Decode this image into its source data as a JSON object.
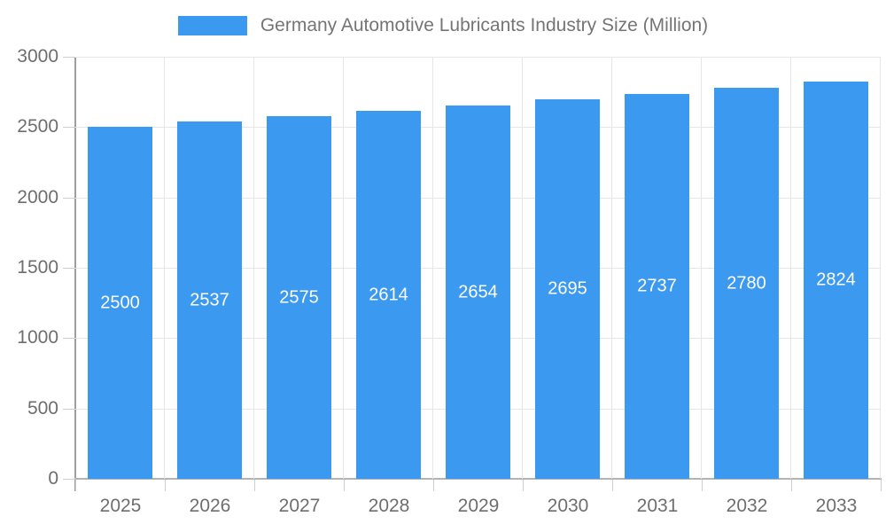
{
  "legend": {
    "label": "Germany Automotive Lubricants Industry Size (Million)"
  },
  "chart_data": {
    "type": "bar",
    "title": "Germany Automotive Lubricants Industry Size (Million)",
    "categories": [
      "2025",
      "2026",
      "2027",
      "2028",
      "2029",
      "2030",
      "2031",
      "2032",
      "2033"
    ],
    "series": [
      {
        "name": "Germany Automotive Lubricants Industry Size (Million)",
        "values": [
          2500,
          2537,
          2575,
          2614,
          2654,
          2695,
          2737,
          2780,
          2824
        ]
      }
    ],
    "value_labels": [
      "2500",
      "2537",
      "2575",
      "2614",
      "2654",
      "2695",
      "2737",
      "2780",
      "2824"
    ],
    "xlabel": "",
    "ylabel": "",
    "ylim": [
      0,
      3000
    ],
    "yticks": [
      0,
      500,
      1000,
      1500,
      2000,
      2500,
      3000
    ],
    "grid": true,
    "legend_position": "top",
    "colors": {
      "bar": "#3b99f0",
      "value_label": "#ffffff",
      "gridline": "#e6e6e6",
      "axis_line": "#b3b3b3",
      "y_axis_line": "#9e9e9e",
      "tick": "#cfcfcf",
      "axis_label": "#6e6e6e",
      "legend_text": "#757575"
    }
  }
}
